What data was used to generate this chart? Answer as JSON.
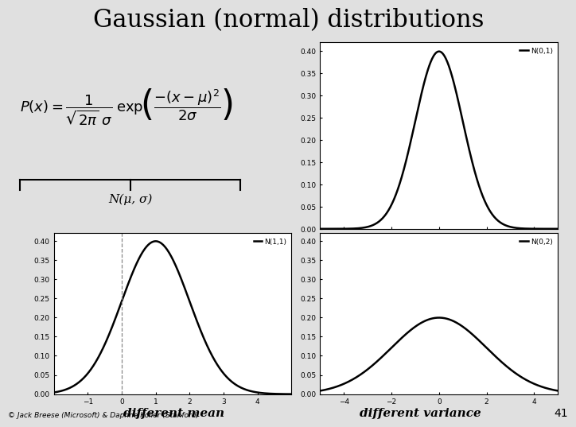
{
  "title": "Gaussian (normal) distributions",
  "background_color": "#e0e0e0",
  "plot_bg": "#ffffff",
  "title_fontsize": 22,
  "label_Nmu_sigma": "N(μ, σ)",
  "plots": [
    {
      "mu": 0,
      "sigma": 1,
      "xmin": -5,
      "xmax": 5,
      "label": "N(0,1)",
      "dashed_line": null,
      "position": "top_right",
      "xticks": [
        -4,
        -2,
        0,
        2,
        4
      ]
    },
    {
      "mu": 1,
      "sigma": 1,
      "xmin": -2,
      "xmax": 5,
      "label": "N(1,1)",
      "dashed_line": 0,
      "position": "bottom_left",
      "xticks": [
        -1,
        0,
        1,
        2,
        3,
        4
      ]
    },
    {
      "mu": 0,
      "sigma": 2,
      "xmin": -5,
      "xmax": 5,
      "label": "N(0,2)",
      "dashed_line": null,
      "position": "bottom_right",
      "xticks": [
        -4,
        -2,
        0,
        2,
        4
      ]
    }
  ],
  "yticks": [
    0,
    0.05,
    0.1,
    0.15,
    0.2,
    0.25,
    0.3,
    0.35,
    0.4
  ],
  "footer_left": "© Jack Breese (Microsoft) & Daphne Koller (Stanford)",
  "footer_center": "different mean",
  "footer_right": "different variance",
  "footer_number": "41",
  "line_color": "#000000",
  "line_width": 1.8
}
